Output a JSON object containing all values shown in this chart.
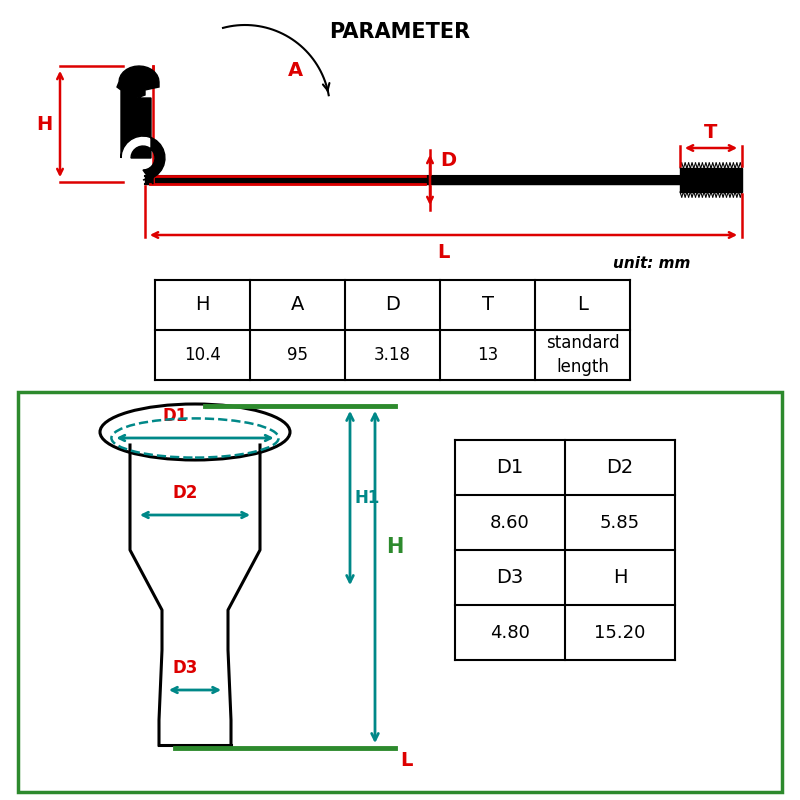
{
  "title": "PARAMETER",
  "title_fontsize": 15,
  "background_color": "#ffffff",
  "red": "#dd0000",
  "black": "#000000",
  "green": "#2d8a2d",
  "teal": "#008888",
  "table1_headers": [
    "H",
    "A",
    "D",
    "T",
    "L"
  ],
  "table1_values": [
    "10.4",
    "95",
    "3.18",
    "13",
    "standard\nlength"
  ],
  "table2_headers": [
    "D1",
    "D2"
  ],
  "table2_row1": [
    "8.60",
    "5.85"
  ],
  "table2_row2_headers": [
    "D3",
    "H"
  ],
  "table2_row2": [
    "4.80",
    "15.20"
  ],
  "unit_label": "unit: mm"
}
